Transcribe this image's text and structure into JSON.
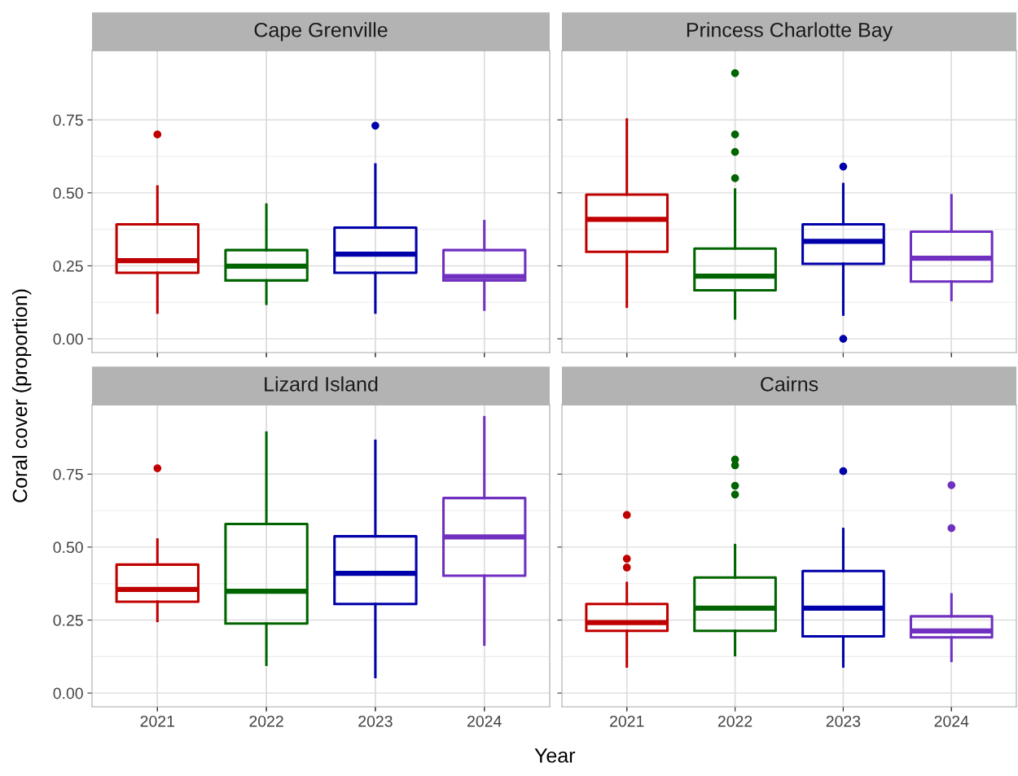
{
  "chart_data": [
    {
      "type": "box",
      "title": "Cape Grenville",
      "ylabel": "Coral cover (proportion)",
      "categories": [
        "2021",
        "2022",
        "2023",
        "2024"
      ],
      "colors": [
        "#c00000",
        "#006400",
        "#0000aa",
        "#7030c0"
      ],
      "ylim": [
        -0.047,
        0.987
      ],
      "yticks": [
        {
          "value": 0,
          "label": "0.00"
        },
        {
          "value": 0.25,
          "label": "0.25"
        },
        {
          "value": 0.5,
          "label": "0.50"
        },
        {
          "value": 0.75,
          "label": "0.75"
        }
      ],
      "grid": true,
      "tick_labels": "y",
      "boxes": [
        {
          "low": 0.09,
          "q1": 0.226,
          "median": 0.268,
          "q3": 0.392,
          "high": 0.522,
          "outliers": [
            0.7
          ]
        },
        {
          "low": 0.12,
          "q1": 0.2,
          "median": 0.249,
          "q3": 0.304,
          "high": 0.46
        },
        {
          "low": 0.09,
          "q1": 0.226,
          "median": 0.29,
          "q3": 0.381,
          "high": 0.597,
          "outliers": [
            0.73
          ]
        },
        {
          "low": 0.1,
          "q1": 0.2,
          "median": 0.213,
          "q3": 0.304,
          "high": 0.403
        }
      ]
    },
    {
      "type": "box",
      "title": "Princess Charlotte Bay",
      "categories": [
        "2021",
        "2022",
        "2023",
        "2024"
      ],
      "colors": [
        "#c00000",
        "#006400",
        "#0000aa",
        "#7030c0"
      ],
      "ylim": [
        -0.047,
        0.987
      ],
      "yticks": [
        {
          "value": 0,
          "label": null
        },
        {
          "value": 0.25,
          "label": null
        },
        {
          "value": 0.5,
          "label": null
        },
        {
          "value": 0.75,
          "label": null
        }
      ],
      "grid": true,
      "tick_labels": false,
      "boxes": [
        {
          "low": 0.11,
          "q1": 0.298,
          "median": 0.409,
          "q3": 0.494,
          "high": 0.751
        },
        {
          "low": 0.07,
          "q1": 0.166,
          "median": 0.215,
          "q3": 0.309,
          "high": 0.511,
          "outliers": [
            0.55,
            0.64,
            0.7,
            0.91
          ]
        },
        {
          "low": 0.083,
          "q1": 0.257,
          "median": 0.334,
          "q3": 0.392,
          "high": 0.53,
          "outliers": [
            0.59,
            0.0
          ]
        },
        {
          "low": 0.133,
          "q1": 0.196,
          "median": 0.276,
          "q3": 0.367,
          "high": 0.492
        }
      ]
    },
    {
      "type": "box",
      "title": "Lizard Island",
      "xlabel": "Year",
      "categories": [
        "2021",
        "2022",
        "2023",
        "2024"
      ],
      "colors": [
        "#c00000",
        "#006400",
        "#0000aa",
        "#7030c0"
      ],
      "ylim": [
        -0.047,
        0.987
      ],
      "yticks": [
        {
          "value": 0,
          "label": "0.00"
        },
        {
          "value": 0.25,
          "label": "0.25"
        },
        {
          "value": 0.5,
          "label": "0.50"
        },
        {
          "value": 0.75,
          "label": "0.75"
        }
      ],
      "grid": true,
      "boxes": [
        {
          "low": 0.247,
          "q1": 0.313,
          "median": 0.355,
          "q3": 0.44,
          "high": 0.526,
          "outliers": [
            0.77
          ]
        },
        {
          "low": 0.097,
          "q1": 0.238,
          "median": 0.349,
          "q3": 0.579,
          "high": 0.892
        },
        {
          "low": 0.055,
          "q1": 0.305,
          "median": 0.41,
          "q3": 0.537,
          "high": 0.864
        },
        {
          "low": 0.166,
          "q1": 0.402,
          "median": 0.535,
          "q3": 0.668,
          "high": 0.945
        }
      ]
    },
    {
      "type": "box",
      "title": "Cairns",
      "categories": [
        "2021",
        "2022",
        "2023",
        "2024"
      ],
      "colors": [
        "#c00000",
        "#006400",
        "#0000aa",
        "#7030c0"
      ],
      "ylim": [
        -0.047,
        0.987
      ],
      "yticks": [
        {
          "value": 0,
          "label": null
        },
        {
          "value": 0.25,
          "label": null
        },
        {
          "value": 0.5,
          "label": null
        },
        {
          "value": 0.75,
          "label": null
        }
      ],
      "grid": true,
      "tick_labels": "x",
      "boxes": [
        {
          "low": 0.091,
          "q1": 0.213,
          "median": 0.241,
          "q3": 0.305,
          "high": 0.377,
          "outliers": [
            0.43,
            0.46,
            0.61
          ]
        },
        {
          "low": 0.13,
          "q1": 0.213,
          "median": 0.291,
          "q3": 0.396,
          "high": 0.507,
          "outliers": [
            0.68,
            0.71,
            0.78,
            0.8
          ]
        },
        {
          "low": 0.091,
          "q1": 0.194,
          "median": 0.291,
          "q3": 0.418,
          "high": 0.562,
          "outliers": [
            0.76
          ]
        },
        {
          "low": 0.11,
          "q1": 0.191,
          "median": 0.213,
          "q3": 0.263,
          "high": 0.338,
          "outliers": [
            0.565,
            0.712
          ]
        }
      ]
    }
  ]
}
